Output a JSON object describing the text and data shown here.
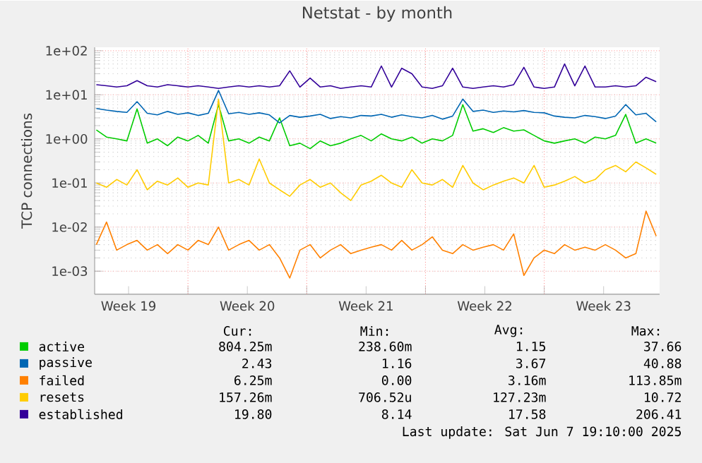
{
  "chart_data": {
    "type": "line",
    "title": "Netstat - by month",
    "ylabel": "TCP connections",
    "log": true,
    "grid": true,
    "legend": "bottom",
    "xlim": [
      "2025-05-06T12:00",
      "2025-06-08T19:12"
    ],
    "ylim": [
      0.0003,
      120
    ],
    "xticks": [
      {
        "value": "2025-05-08T12:00",
        "label": "Week 19"
      },
      {
        "value": "2025-05-15T12:00",
        "label": "Week 20"
      },
      {
        "value": "2025-05-22T12:00",
        "label": "Week 21"
      },
      {
        "value": "2025-05-29T12:00",
        "label": "Week 22"
      },
      {
        "value": "2025-06-05T12:00",
        "label": "Week 23"
      },
      {
        "value": "2025-05-12",
        "label": null
      },
      {
        "value": "2025-05-19",
        "label": null
      },
      {
        "value": "2025-05-26",
        "label": null
      },
      {
        "value": "2025-06-02",
        "label": null
      }
    ],
    "yticks": [
      {
        "value": 0.001,
        "label": "1e-03"
      },
      {
        "value": 0.01,
        "label": "1e-02"
      },
      {
        "value": 0.1,
        "label": "1e-01"
      },
      {
        "value": 1,
        "label": "1e+00"
      },
      {
        "value": 10,
        "label": "1e+01"
      },
      {
        "value": 100,
        "label": "1e+02"
      }
    ],
    "x": [
      "2025-05-06T14:24",
      "2025-05-07T04:48",
      "2025-05-07T19:12",
      "2025-05-08T09:36",
      "2025-05-09T00:00",
      "2025-05-09T14:24",
      "2025-05-10T04:48",
      "2025-05-10T19:12",
      "2025-05-11T09:36",
      "2025-05-12T00:00",
      "2025-05-12T14:24",
      "2025-05-13T04:48",
      "2025-05-13T19:12",
      "2025-05-14T09:36",
      "2025-05-15T00:00",
      "2025-05-15T14:24",
      "2025-05-16T04:48",
      "2025-05-16T19:12",
      "2025-05-17T09:36",
      "2025-05-18T00:00",
      "2025-05-18T14:24",
      "2025-05-19T04:48",
      "2025-05-19T19:12",
      "2025-05-20T09:36",
      "2025-05-21T00:00",
      "2025-05-21T14:24",
      "2025-05-22T04:48",
      "2025-05-22T19:12",
      "2025-05-23T09:36",
      "2025-05-24T00:00",
      "2025-05-24T14:24",
      "2025-05-25T04:48",
      "2025-05-25T19:12",
      "2025-05-26T09:36",
      "2025-05-27T00:00",
      "2025-05-27T14:24",
      "2025-05-28T04:48",
      "2025-05-28T19:12",
      "2025-05-29T09:36",
      "2025-05-30T00:00",
      "2025-05-30T14:24",
      "2025-05-31T04:48",
      "2025-05-31T19:12",
      "2025-06-01T09:36",
      "2025-06-02T00:00",
      "2025-06-02T14:24",
      "2025-06-03T04:48",
      "2025-06-03T19:12",
      "2025-06-04T09:36",
      "2025-06-05T00:00",
      "2025-06-05T14:24",
      "2025-06-06T04:48",
      "2025-06-06T19:12",
      "2025-06-07T09:36",
      "2025-06-08T00:00",
      "2025-06-08T14:24"
    ],
    "series": [
      {
        "name": "active",
        "color": "#00cc00",
        "values": [
          1.6,
          1.1,
          1.0,
          0.9,
          4.8,
          0.8,
          1.0,
          0.7,
          1.1,
          0.9,
          1.2,
          0.8,
          6.0,
          0.9,
          1.0,
          0.8,
          1.1,
          0.9,
          3.0,
          0.7,
          0.8,
          0.6,
          0.9,
          0.7,
          0.8,
          1.0,
          1.2,
          0.9,
          1.3,
          1.0,
          0.9,
          1.1,
          0.8,
          1.0,
          0.9,
          1.2,
          6.0,
          1.5,
          1.7,
          1.4,
          1.8,
          1.5,
          1.6,
          1.2,
          0.9,
          0.8,
          0.9,
          1.0,
          0.8,
          1.1,
          1.0,
          1.2,
          3.6,
          0.8,
          1.0,
          0.804
        ]
      },
      {
        "name": "passive",
        "color": "#0066b3",
        "values": [
          4.9,
          4.5,
          4.2,
          4.0,
          7.0,
          3.8,
          3.5,
          4.2,
          3.6,
          3.9,
          3.4,
          3.8,
          12.6,
          3.7,
          4.0,
          3.6,
          3.9,
          3.5,
          2.3,
          3.4,
          3.1,
          3.3,
          3.6,
          2.9,
          3.2,
          3.0,
          3.4,
          3.3,
          3.6,
          3.1,
          3.5,
          3.2,
          3.0,
          3.4,
          2.8,
          3.3,
          8.0,
          4.2,
          4.5,
          4.0,
          4.3,
          4.1,
          4.4,
          4.0,
          3.9,
          3.3,
          3.1,
          3.0,
          3.4,
          3.2,
          2.9,
          3.3,
          6.0,
          3.5,
          3.8,
          2.43
        ]
      },
      {
        "name": "failed",
        "color": "#ff8000",
        "values": [
          0.004,
          0.013,
          0.003,
          0.004,
          0.005,
          0.003,
          0.004,
          0.0025,
          0.004,
          0.003,
          0.005,
          0.004,
          0.01,
          0.003,
          0.004,
          0.005,
          0.003,
          0.004,
          0.002,
          0.0007,
          0.003,
          0.004,
          0.002,
          0.003,
          0.004,
          0.0025,
          0.003,
          0.0035,
          0.004,
          0.003,
          0.005,
          0.003,
          0.004,
          0.006,
          0.003,
          0.0025,
          0.004,
          0.003,
          0.0035,
          0.004,
          0.003,
          0.007,
          0.0008,
          0.002,
          0.003,
          0.0025,
          0.004,
          0.003,
          0.0035,
          0.003,
          0.004,
          0.003,
          0.002,
          0.0025,
          0.023,
          0.00625
        ]
      },
      {
        "name": "resets",
        "color": "#ffcc00",
        "values": [
          0.1,
          0.08,
          0.12,
          0.09,
          0.2,
          0.07,
          0.11,
          0.09,
          0.13,
          0.08,
          0.1,
          0.09,
          8,
          0.1,
          0.12,
          0.09,
          0.35,
          0.1,
          0.07,
          0.05,
          0.09,
          0.12,
          0.08,
          0.1,
          0.06,
          0.04,
          0.09,
          0.11,
          0.15,
          0.1,
          0.08,
          0.2,
          0.1,
          0.09,
          0.12,
          0.08,
          0.25,
          0.1,
          0.07,
          0.09,
          0.11,
          0.13,
          0.1,
          0.25,
          0.08,
          0.09,
          0.11,
          0.14,
          0.1,
          0.12,
          0.2,
          0.25,
          0.18,
          0.3,
          0.22,
          0.157
        ]
      },
      {
        "name": "established",
        "color": "#330099",
        "values": [
          17,
          16,
          15,
          16,
          21,
          16,
          15,
          17,
          16,
          15,
          16,
          15,
          14,
          15,
          16,
          15,
          16,
          15,
          16,
          35,
          15,
          24,
          15,
          16,
          14,
          15,
          16,
          15,
          45,
          15,
          40,
          30,
          15,
          14,
          16,
          40,
          15,
          14,
          15,
          16,
          15,
          17,
          42,
          15,
          14,
          15,
          50,
          16,
          45,
          15,
          15,
          16,
          15,
          16,
          25,
          19.8
        ]
      }
    ],
    "annotations": [
      "Cur:",
      "Min:",
      "Avg:",
      "Max:",
      "804.25m",
      "238.60m",
      "1.15",
      "37.66",
      "2.43",
      "1.16",
      "3.67",
      "40.88",
      "6.25m",
      "0.00",
      "3.16m",
      "113.85m",
      "157.26m",
      "706.52u",
      "127.23m",
      "10.72",
      "19.80",
      "8.14",
      "17.58",
      "206.41",
      "Last update: Sat Jun  7 19:10:00 2025"
    ]
  }
}
